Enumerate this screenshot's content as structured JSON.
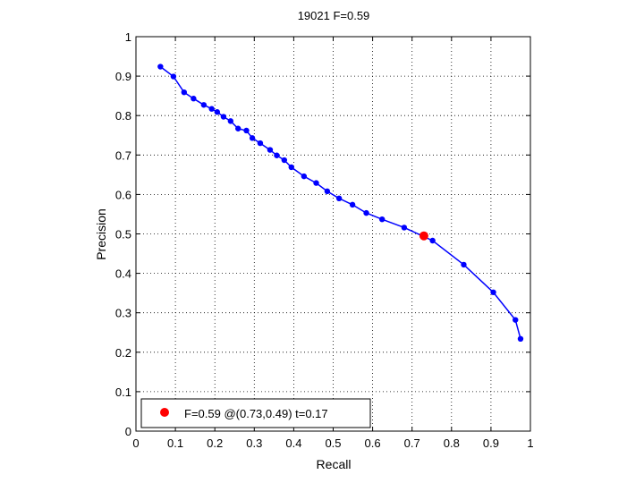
{
  "chart_data": {
    "type": "line",
    "title": "19021 F=0.59",
    "xlabel": "Recall",
    "ylabel": "Precision",
    "xlim": [
      0,
      1
    ],
    "ylim": [
      0,
      1
    ],
    "grid": true,
    "x_ticks": [
      "0",
      "0.1",
      "0.2",
      "0.3",
      "0.4",
      "0.5",
      "0.6",
      "0.7",
      "0.8",
      "0.9",
      "1"
    ],
    "y_ticks": [
      "0",
      "0.1",
      "0.2",
      "0.3",
      "0.4",
      "0.5",
      "0.6",
      "0.7",
      "0.8",
      "0.9",
      "1"
    ],
    "series": [
      {
        "color": "#0000ff",
        "marker": "dot",
        "points": [
          [
            0.062,
            0.924
          ],
          [
            0.095,
            0.899
          ],
          [
            0.122,
            0.859
          ],
          [
            0.146,
            0.843
          ],
          [
            0.172,
            0.827
          ],
          [
            0.192,
            0.817
          ],
          [
            0.206,
            0.809
          ],
          [
            0.222,
            0.797
          ],
          [
            0.24,
            0.786
          ],
          [
            0.259,
            0.767
          ],
          [
            0.28,
            0.762
          ],
          [
            0.295,
            0.743
          ],
          [
            0.315,
            0.73
          ],
          [
            0.34,
            0.713
          ],
          [
            0.357,
            0.699
          ],
          [
            0.376,
            0.687
          ],
          [
            0.394,
            0.669
          ],
          [
            0.426,
            0.646
          ],
          [
            0.457,
            0.629
          ],
          [
            0.485,
            0.608
          ],
          [
            0.515,
            0.59
          ],
          [
            0.549,
            0.574
          ],
          [
            0.584,
            0.553
          ],
          [
            0.624,
            0.537
          ],
          [
            0.68,
            0.516
          ],
          [
            0.752,
            0.483
          ],
          [
            0.831,
            0.422
          ],
          [
            0.906,
            0.352
          ],
          [
            0.962,
            0.282
          ],
          [
            0.975,
            0.234
          ]
        ]
      }
    ],
    "best_point": {
      "x": 0.73,
      "y": 0.495,
      "color": "#ff0000"
    },
    "legend": {
      "position": "bottom-left",
      "label": "F=0.59 @(0.73,0.49) t=0.17",
      "marker_color": "#ff0000"
    }
  }
}
